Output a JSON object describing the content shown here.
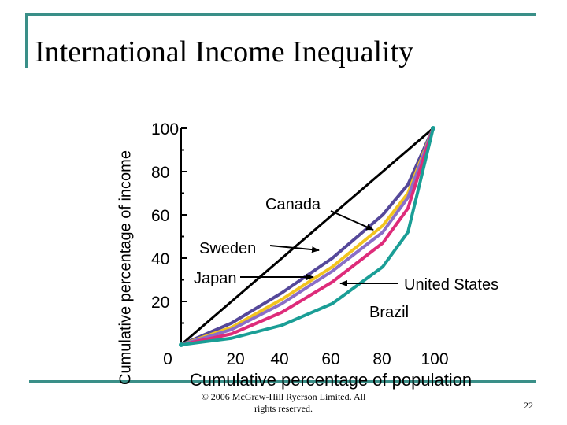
{
  "slide": {
    "title": "International Income Inequality",
    "copyright": "© 2006 McGraw-Hill Ryerson Limited. All rights reserved.",
    "page_number": "22",
    "frame_color": "#3a8f88"
  },
  "chart_data": {
    "type": "line",
    "title": "International Income Inequality",
    "xlabel": "Cumulative percentage of population",
    "ylabel": "Cumulative percentage of income",
    "xlim": [
      0,
      100
    ],
    "ylim": [
      0,
      100
    ],
    "x_ticks": [
      0,
      20,
      40,
      60,
      80,
      100
    ],
    "y_ticks": [
      20,
      40,
      60,
      80,
      100
    ],
    "x_tick_labels": [
      "0",
      "20",
      "40",
      "60",
      "80",
      "100"
    ],
    "y_tick_labels": [
      "20",
      "40",
      "60",
      "80",
      "100"
    ],
    "grid": false,
    "series": [
      {
        "name": "",
        "color": "#000000",
        "x": [
          0,
          100
        ],
        "y": [
          0,
          100
        ]
      },
      {
        "name": "Sweden",
        "color": "#55489a",
        "x": [
          0,
          20,
          40,
          60,
          80,
          90,
          100
        ],
        "y": [
          0,
          10,
          24,
          40,
          60,
          74,
          100
        ]
      },
      {
        "name": "Japan",
        "color": "#f2c41e",
        "x": [
          0,
          20,
          40,
          60,
          80,
          90,
          100
        ],
        "y": [
          0,
          8,
          21,
          36,
          55,
          70,
          100
        ]
      },
      {
        "name": "Canada",
        "color": "#8a6ec8",
        "x": [
          0,
          20,
          40,
          60,
          80,
          90,
          100
        ],
        "y": [
          0,
          7,
          19,
          34,
          52,
          68,
          100
        ]
      },
      {
        "name": "United States",
        "color": "#de2b7a",
        "x": [
          0,
          20,
          40,
          60,
          80,
          90,
          100
        ],
        "y": [
          0,
          5,
          15,
          29,
          47,
          63,
          100
        ]
      },
      {
        "name": "Brazil",
        "color": "#1a9e96",
        "x": [
          0,
          20,
          40,
          60,
          80,
          90,
          100
        ],
        "y": [
          0,
          3,
          9,
          19,
          36,
          52,
          100
        ]
      }
    ],
    "annotations": [
      {
        "text": "Canada",
        "target_series": "Canada"
      },
      {
        "text": "Sweden",
        "target_series": "Sweden"
      },
      {
        "text": "Japan",
        "target_series": "Japan"
      },
      {
        "text": "United States",
        "target_series": "United States"
      },
      {
        "text": "Brazil",
        "target_series": "Brazil"
      }
    ]
  }
}
